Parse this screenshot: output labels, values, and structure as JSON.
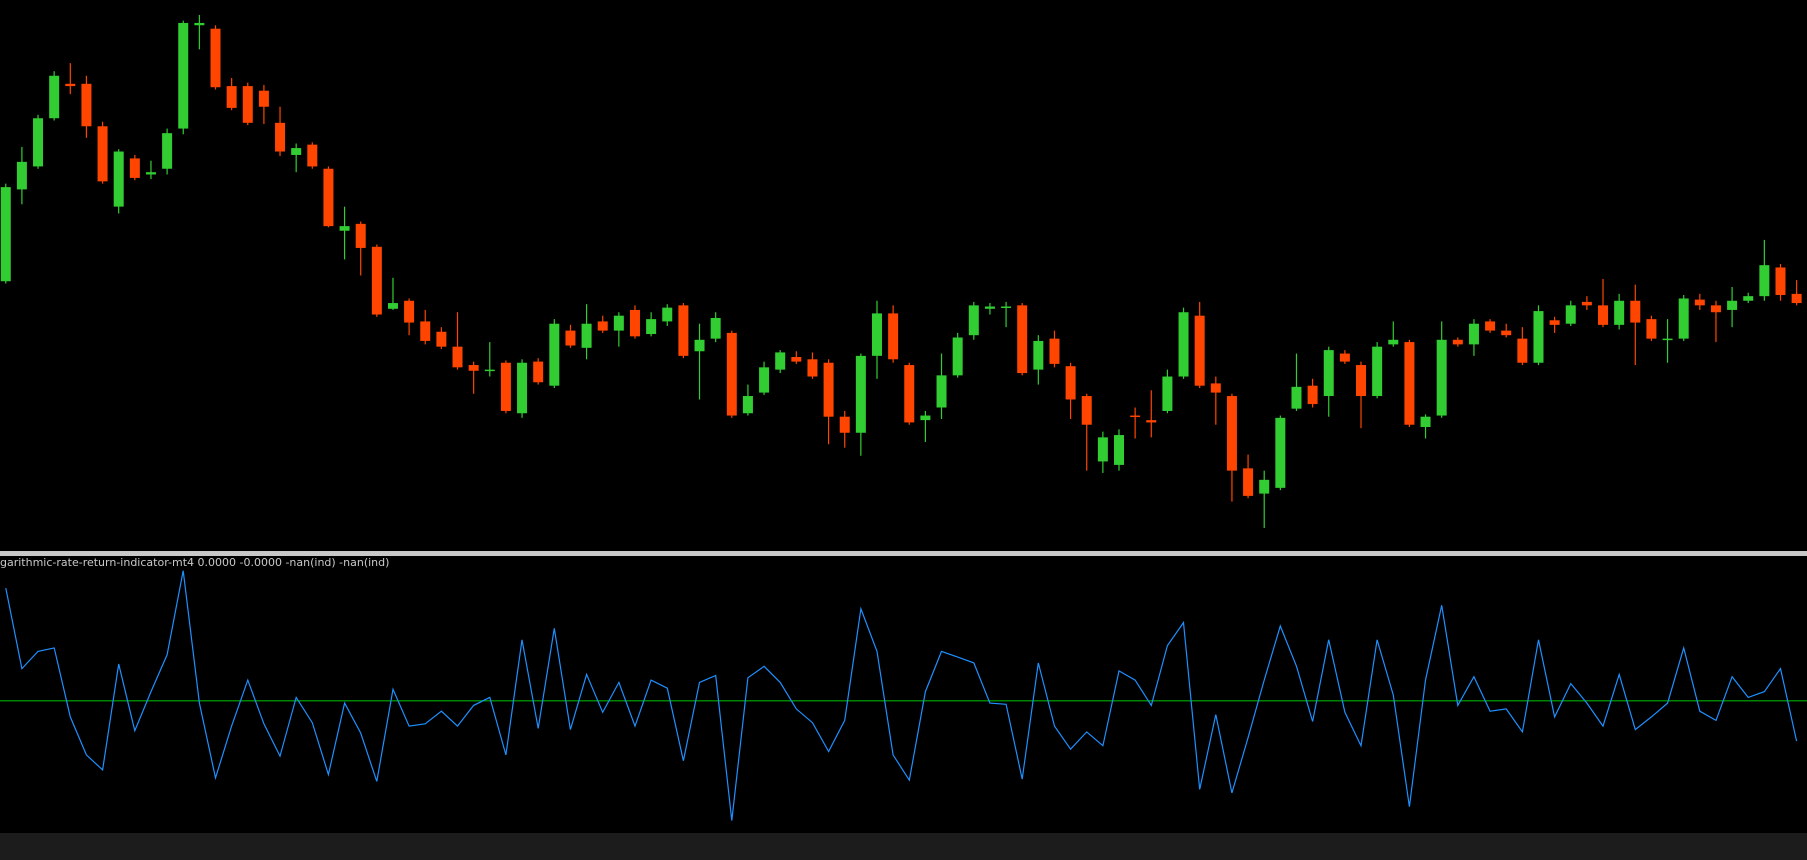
{
  "chart_data": [
    {
      "type": "candlestick",
      "up_color": "#32cd32",
      "down_color": "#ff4500",
      "ylim": [
        0,
        480
      ],
      "open": [
        235,
        315,
        335,
        377,
        407,
        407,
        370,
        300,
        342,
        328,
        333,
        368,
        458,
        455,
        405,
        405,
        401,
        373,
        345,
        354,
        333,
        279,
        285,
        265,
        211,
        218,
        200,
        191,
        178,
        162,
        157,
        164,
        120,
        165,
        144,
        192,
        177,
        200,
        192,
        210,
        189,
        200,
        214,
        174,
        185,
        190,
        120,
        138,
        158,
        169,
        167,
        164,
        117,
        103,
        170,
        207,
        162,
        114,
        125,
        153,
        188,
        211,
        212,
        214,
        158,
        185,
        161,
        135,
        78,
        75,
        118,
        114,
        122,
        152,
        205,
        146,
        135,
        72,
        50,
        55,
        124,
        144,
        135,
        172,
        162,
        135,
        180,
        182,
        108,
        118,
        184,
        180,
        200,
        192,
        185,
        164,
        201,
        198,
        217,
        214,
        197,
        218,
        202,
        184,
        185,
        219,
        214,
        210,
        218,
        222,
        247,
        224
      ],
      "high": [
        320,
        352,
        380,
        418,
        425,
        414,
        374,
        350,
        345,
        340,
        368,
        462,
        467,
        458,
        412,
        408,
        406,
        387,
        355,
        356,
        335,
        300,
        287,
        267,
        238,
        220,
        210,
        195,
        208,
        165,
        182,
        166,
        167,
        168,
        202,
        197,
        215,
        205,
        208,
        214,
        208,
        215,
        216,
        198,
        208,
        192,
        145,
        165,
        175,
        174,
        173,
        167,
        122,
        172,
        218,
        214,
        164,
        122,
        172,
        190,
        217,
        216,
        217,
        216,
        188,
        192,
        164,
        137,
        104,
        106,
        125,
        140,
        158,
        212,
        217,
        152,
        137,
        84,
        70,
        118,
        172,
        150,
        178,
        175,
        165,
        182,
        200,
        184,
        119,
        200,
        186,
        202,
        202,
        198,
        195,
        214,
        204,
        218,
        222,
        237,
        224,
        232,
        205,
        202,
        223,
        224,
        218,
        230,
        225,
        271,
        250,
        236
      ],
      "low": [
        233,
        302,
        333,
        375,
        398,
        360,
        320,
        294,
        323,
        324,
        328,
        363,
        437,
        402,
        384,
        371,
        372,
        344,
        330,
        333,
        282,
        254,
        240,
        204,
        210,
        188,
        180,
        176,
        158,
        137,
        152,
        120,
        116,
        145,
        142,
        177,
        167,
        190,
        178,
        185,
        187,
        196,
        168,
        132,
        182,
        116,
        118,
        136,
        155,
        163,
        150,
        93,
        90,
        83,
        150,
        164,
        110,
        95,
        115,
        151,
        184,
        206,
        195,
        153,
        145,
        160,
        115,
        70,
        68,
        70,
        98,
        99,
        120,
        150,
        142,
        110,
        43,
        46,
        20,
        53,
        122,
        125,
        117,
        163,
        107,
        133,
        178,
        108,
        98,
        116,
        178,
        170,
        190,
        186,
        162,
        162,
        190,
        196,
        210,
        195,
        193,
        162,
        183,
        164,
        183,
        210,
        182,
        195,
        216,
        218,
        218,
        214
      ],
      "close": [
        317,
        339,
        377,
        414,
        405,
        370,
        322,
        348,
        325,
        330,
        364,
        460,
        460,
        404,
        386,
        373,
        387,
        348,
        351,
        335,
        283,
        283,
        264,
        206,
        216,
        199,
        183,
        178,
        160,
        157,
        158,
        122,
        164,
        147,
        198,
        179,
        198,
        192,
        205,
        187,
        202,
        212,
        170,
        184,
        203,
        118,
        135,
        160,
        173,
        165,
        152,
        117,
        103,
        170,
        207,
        167,
        112,
        118,
        153,
        186,
        214,
        213,
        213,
        155,
        183,
        163,
        132,
        110,
        99,
        101,
        117,
        112,
        152,
        208,
        144,
        138,
        70,
        48,
        62,
        116,
        143,
        128,
        175,
        165,
        135,
        178,
        184,
        110,
        117,
        184,
        180,
        198,
        192,
        188,
        164,
        209,
        197,
        214,
        214,
        197,
        218,
        199,
        185,
        185,
        220,
        214,
        208,
        218,
        222,
        249,
        223,
        216
      ]
    },
    {
      "type": "line",
      "title": "garithmic-rate-return-indicator-mt4 0.0000 -0.0000 -nan(ind) -nan(ind)",
      "ylim": [
        -1.14,
        1.25
      ],
      "level": 0,
      "level_color": "#00b000",
      "series": [
        {
          "color": "#1e90ff",
          "values": [
            0.98,
            0.28,
            0.43,
            0.46,
            -0.14,
            -0.47,
            -0.6,
            0.32,
            -0.26,
            0.08,
            0.4,
            1.13,
            -0.02,
            -0.67,
            -0.22,
            0.18,
            -0.2,
            -0.48,
            0.03,
            -0.19,
            -0.64,
            -0.02,
            -0.28,
            -0.7,
            0.1,
            -0.22,
            -0.2,
            -0.09,
            -0.22,
            -0.04,
            0.03,
            -0.47,
            0.53,
            -0.24,
            0.63,
            -0.25,
            0.23,
            -0.1,
            0.16,
            -0.22,
            0.18,
            0.11,
            -0.52,
            0.16,
            0.22,
            -1.04,
            0.2,
            0.3,
            0.16,
            -0.07,
            -0.19,
            -0.44,
            -0.17,
            0.8,
            0.43,
            -0.47,
            -0.69,
            0.08,
            0.43,
            0.38,
            0.33,
            -0.02,
            -0.03,
            -0.68,
            0.33,
            -0.22,
            -0.42,
            -0.27,
            -0.39,
            0.26,
            0.18,
            -0.04,
            0.48,
            0.68,
            -0.77,
            -0.12,
            -0.8,
            -0.32,
            0.18,
            0.65,
            0.3,
            -0.18,
            0.53,
            -0.1,
            -0.39,
            0.53,
            0.05,
            -0.92,
            0.18,
            0.83,
            -0.04,
            0.21,
            -0.09,
            -0.07,
            -0.27,
            0.53,
            -0.14,
            0.15,
            -0.02,
            -0.22,
            0.23,
            -0.25,
            -0.14,
            -0.02,
            0.46,
            -0.09,
            -0.17,
            0.21,
            0.03,
            0.08,
            0.28,
            -0.35
          ]
        }
      ]
    }
  ]
}
